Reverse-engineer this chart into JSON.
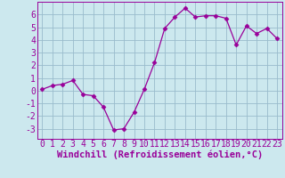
{
  "x": [
    0,
    1,
    2,
    3,
    4,
    5,
    6,
    7,
    8,
    9,
    10,
    11,
    12,
    13,
    14,
    15,
    16,
    17,
    18,
    19,
    20,
    21,
    22,
    23
  ],
  "y": [
    0.1,
    0.4,
    0.5,
    0.8,
    -0.3,
    -0.4,
    -1.3,
    -3.1,
    -3.0,
    -1.7,
    0.1,
    2.2,
    4.9,
    5.8,
    6.5,
    5.8,
    5.9,
    5.9,
    5.7,
    3.6,
    5.1,
    4.5,
    4.9,
    4.1
  ],
  "line_color": "#990099",
  "marker": "D",
  "marker_size": 2.5,
  "bg_color": "#cce8ee",
  "grid_color": "#99bbcc",
  "xlabel": "Windchill (Refroidissement éolien,°C)",
  "xlabel_color": "#990099",
  "xlabel_fontsize": 7.5,
  "tick_color": "#990099",
  "tick_fontsize": 7,
  "ylim": [
    -3.8,
    7.0
  ],
  "xlim": [
    -0.5,
    23.5
  ],
  "yticks": [
    -3,
    -2,
    -1,
    0,
    1,
    2,
    3,
    4,
    5,
    6
  ],
  "xticks": [
    0,
    1,
    2,
    3,
    4,
    5,
    6,
    7,
    8,
    9,
    10,
    11,
    12,
    13,
    14,
    15,
    16,
    17,
    18,
    19,
    20,
    21,
    22,
    23
  ],
  "xtick_labels": [
    "0",
    "1",
    "2",
    "3",
    "4",
    "5",
    "6",
    "7",
    "8",
    "9",
    "10",
    "11",
    "12",
    "13",
    "14",
    "15",
    "16",
    "17",
    "18",
    "19",
    "20",
    "21",
    "22",
    "23"
  ]
}
